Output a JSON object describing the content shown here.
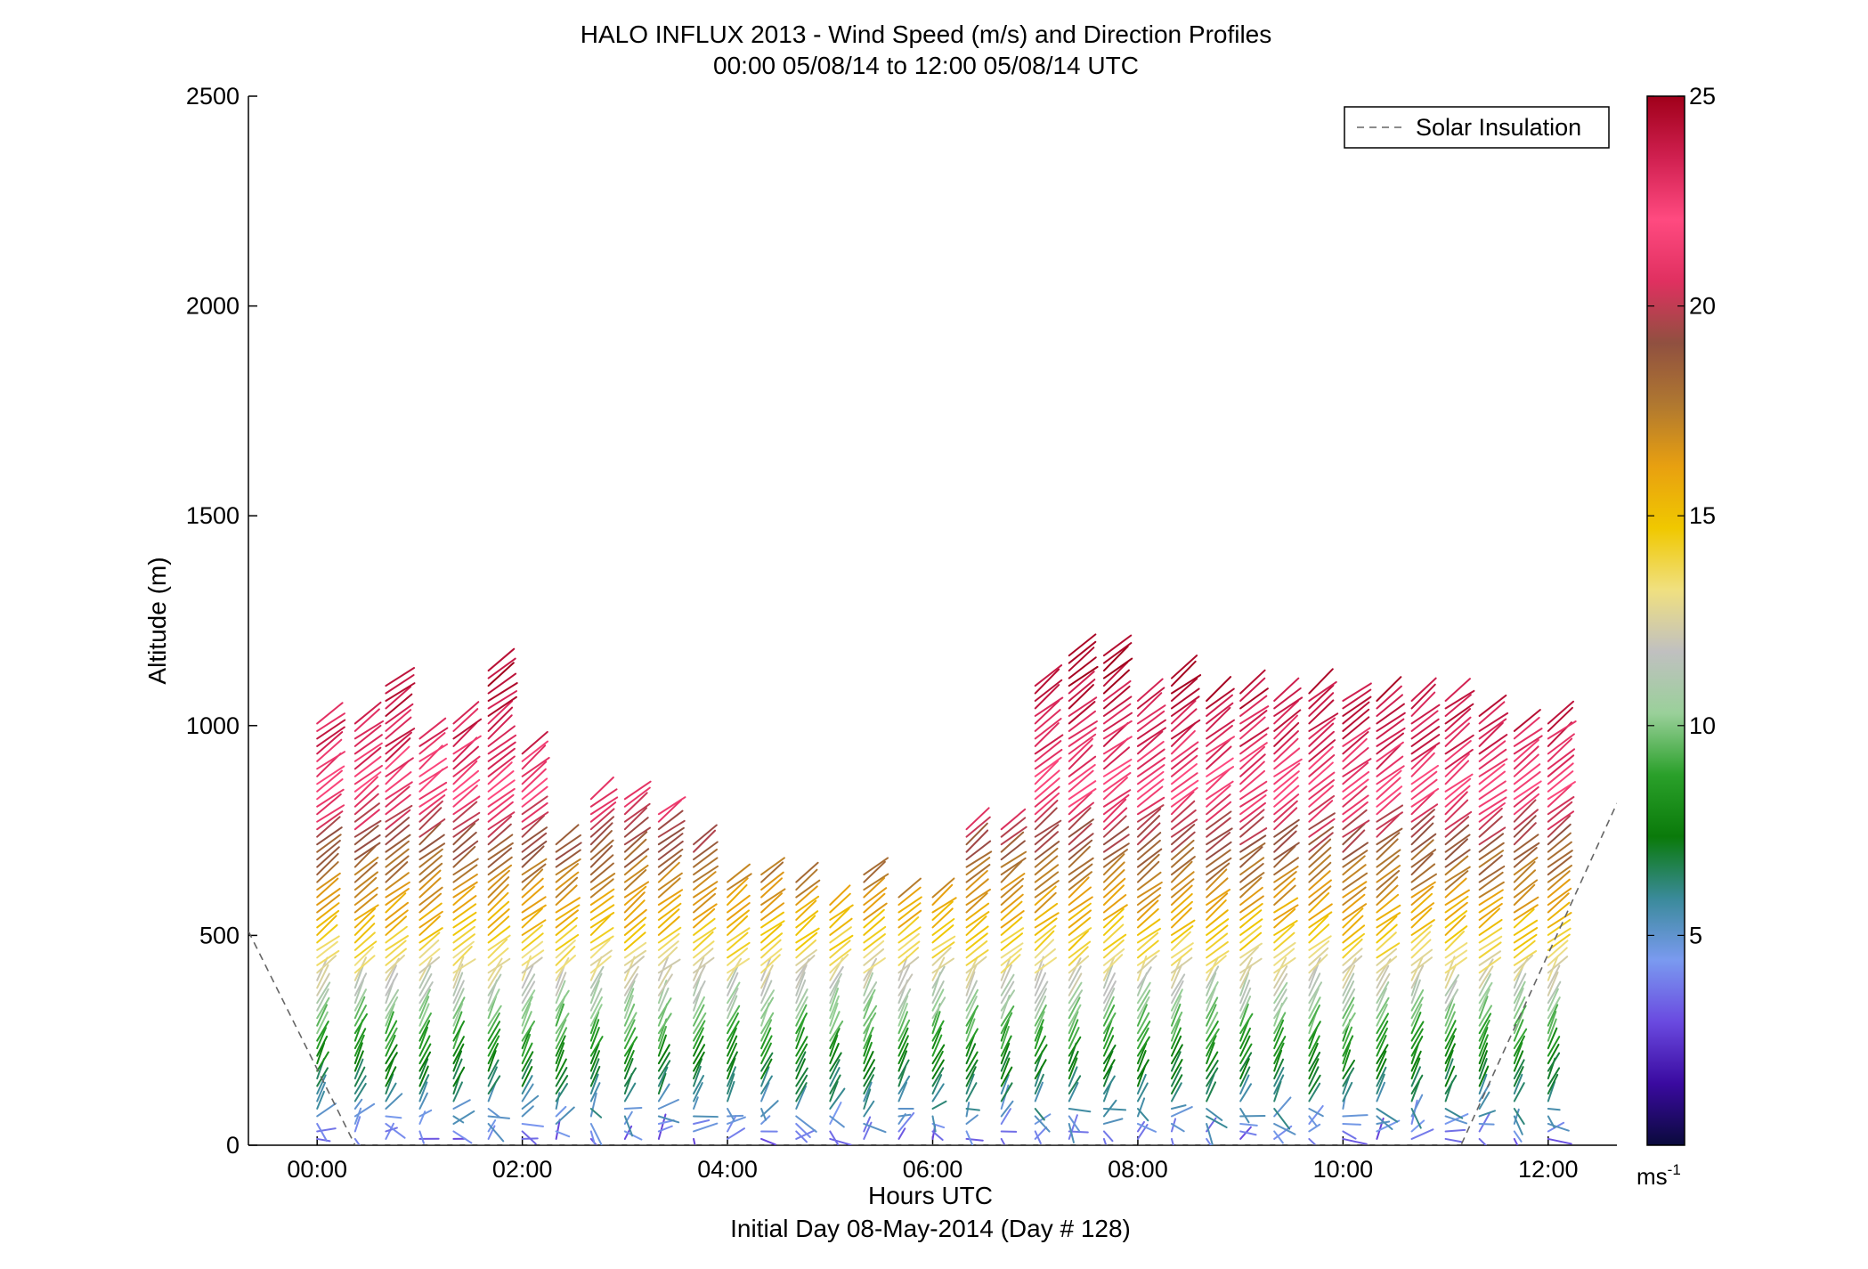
{
  "chart_data": {
    "type": "wind barb profile",
    "title": "HALO INFLUX 2013 - Wind Speed (m/s) and Direction Profiles",
    "subtitle": "00:00 05/08/14 to 12:00 05/08/14  UTC",
    "xlabel": "Hours UTC",
    "xlabel2": "Initial Day 08-May-2014 (Day # 128)",
    "ylabel": "Altitude (m)",
    "xlim": [
      -0.67,
      12.67
    ],
    "ylim": [
      0,
      2500
    ],
    "x_ticks": [
      0,
      2,
      4,
      6,
      8,
      10,
      12
    ],
    "x_tick_labels": [
      "00:00",
      "02:00",
      "04:00",
      "06:00",
      "08:00",
      "10:00",
      "12:00"
    ],
    "y_ticks": [
      0,
      500,
      1000,
      1500,
      2000,
      2500
    ],
    "y_tick_labels": [
      "0",
      "500",
      "1000",
      "1500",
      "2000",
      "2500"
    ],
    "legend": {
      "entries": [
        "Solar Insulation"
      ],
      "position": "top-right",
      "line_style": "dashed",
      "color": "#666666"
    },
    "colorbar": {
      "range": [
        0,
        25
      ],
      "ticks": [
        5,
        10,
        15,
        20,
        25
      ],
      "tick_labels": [
        "5",
        "10",
        "15",
        "20",
        "25"
      ],
      "unit_label": "ms",
      "unit_exponent": "-1",
      "colors": [
        "#0a0a3c",
        "#3a0aa0",
        "#6a4ae0",
        "#7a9af0",
        "#3a8a9a",
        "#0a7a0a",
        "#2aa02a",
        "#9ad09a",
        "#c0c0c0",
        "#f0e080",
        "#f0c800",
        "#e8a010",
        "#b07830",
        "#905040",
        "#e03060",
        "#ff4a80",
        "#d02050",
        "#a0001a"
      ]
    },
    "solar_insolation": [
      {
        "x": -0.67,
        "y": 510
      },
      {
        "x": 0.37,
        "y": 0
      },
      {
        "x": 11.15,
        "y": 0
      },
      {
        "x": 12.67,
        "y": 815
      }
    ],
    "profile_times": [
      0.0,
      0.37,
      0.67,
      1.0,
      1.33,
      1.67,
      2.0,
      2.33,
      2.67,
      3.0,
      3.33,
      3.67,
      4.0,
      4.33,
      4.67,
      5.0,
      5.33,
      5.67,
      6.0,
      6.33,
      6.67,
      7.0,
      7.33,
      7.67,
      8.0,
      8.33,
      8.67,
      9.0,
      9.33,
      9.67,
      10.0,
      10.33,
      10.67,
      11.0,
      11.33,
      11.67,
      12.0
    ],
    "profile_tops_m": [
      1020,
      1020,
      1100,
      970,
      1010,
      1135,
      940,
      730,
      840,
      830,
      790,
      730,
      630,
      660,
      640,
      590,
      650,
      600,
      600,
      760,
      760,
      1100,
      1170,
      1170,
      1060,
      1130,
      1070,
      1080,
      1075,
      1090,
      1075,
      1065,
      1065,
      1060,
      1035,
      1000,
      1010
    ],
    "speed_ramp_m_per_s": [
      {
        "h": 0,
        "s": 3
      },
      {
        "h": 60,
        "s": 5
      },
      {
        "h": 250,
        "s": 9
      },
      {
        "h": 500,
        "s": 15
      },
      {
        "h": 700,
        "s": 19
      },
      {
        "h": 900,
        "s": 23
      },
      {
        "h": 1200,
        "s": 25
      }
    ]
  }
}
